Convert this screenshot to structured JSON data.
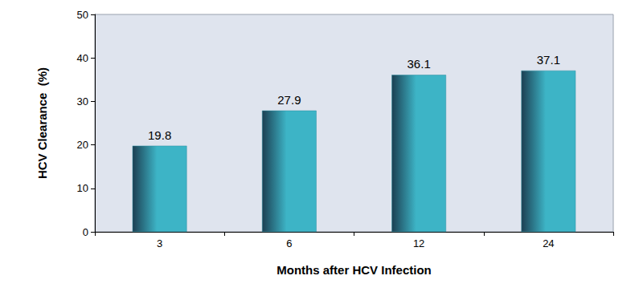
{
  "chart_data": {
    "type": "bar",
    "x_label": "Months after HCV Infection",
    "y_label": "HCV Clearance  (%)",
    "categories": [
      "3",
      "6",
      "12",
      "24"
    ],
    "values": [
      19.8,
      27.9,
      36.1,
      37.1
    ],
    "color": "#3db4c6",
    "ylim": [
      0,
      50
    ],
    "yticks": [
      0,
      10,
      20,
      30,
      40,
      50
    ],
    "grid": false,
    "data_labels": true
  }
}
